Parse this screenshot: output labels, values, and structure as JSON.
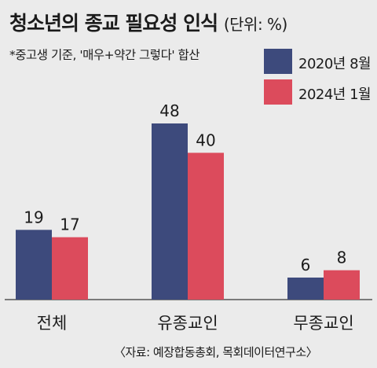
{
  "title": "청소년의 종교 필요성 인식",
  "unit": "(단위: %)",
  "subtitle": "*중고생 기준, '매우+약간 그렇다' 합산",
  "source": "〈자료: 예장합동총회, 목회데이터연구소〉",
  "colors": {
    "series1": "#3d4a7c",
    "series2": "#dc4b5c",
    "baseline": "#555555"
  },
  "chart_data": {
    "type": "bar",
    "categories": [
      "전체",
      "유종교인",
      "무종교인"
    ],
    "series": [
      {
        "name": "2020년 8월",
        "values": [
          19,
          48,
          6
        ]
      },
      {
        "name": "2024년 1월",
        "values": [
          17,
          40,
          8
        ]
      }
    ],
    "ylim": [
      0,
      48
    ]
  }
}
